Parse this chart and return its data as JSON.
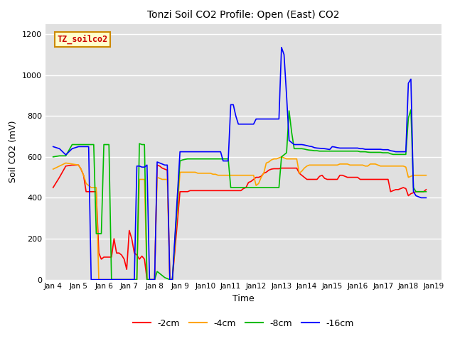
{
  "title": "Tonzi Soil CO2 Profile: Open (East) CO2",
  "xlabel": "Time",
  "ylabel": "Soil CO2 (mV)",
  "ylim": [
    0,
    1250
  ],
  "yticks": [
    0,
    200,
    400,
    600,
    800,
    1000,
    1200
  ],
  "background_color": "#e0e0e0",
  "fig_bg": "#ffffff",
  "legend_label": "TZ_soilco2",
  "series": {
    "2cm": {
      "color": "#ff0000",
      "label": "-2cm",
      "x": [
        0,
        0.25,
        0.5,
        0.75,
        1.0,
        1.1,
        1.2,
        1.3,
        1.4,
        1.5,
        1.6,
        1.7,
        1.8,
        1.9,
        2.0,
        2.1,
        2.2,
        2.3,
        2.4,
        2.5,
        2.6,
        2.7,
        2.8,
        2.9,
        3.0,
        3.1,
        3.2,
        3.3,
        3.4,
        3.5,
        3.6,
        3.7,
        3.8,
        3.9,
        4.0,
        4.1,
        4.2,
        4.3,
        4.4,
        4.5,
        4.6,
        4.7,
        5.0,
        5.1,
        5.2,
        5.3,
        5.4,
        5.5,
        5.6,
        5.7,
        5.8,
        5.9,
        6.0,
        6.1,
        6.2,
        6.3,
        6.4,
        6.5,
        6.6,
        6.7,
        6.8,
        6.9,
        7.0,
        7.1,
        7.2,
        7.3,
        7.4,
        7.5,
        7.6,
        7.7,
        7.8,
        7.9,
        8.0,
        8.1,
        8.2,
        8.3,
        8.4,
        8.5,
        8.6,
        8.7,
        8.8,
        8.9,
        9.0,
        9.1,
        9.2,
        9.3,
        9.4,
        9.5,
        9.6,
        9.7,
        9.8,
        9.9,
        10.0,
        10.1,
        10.2,
        10.3,
        10.4,
        10.5,
        10.6,
        10.7,
        10.8,
        10.9,
        11.0,
        11.1,
        11.2,
        11.3,
        11.4,
        11.5,
        11.6,
        11.7,
        11.8,
        11.9,
        12.0,
        12.1,
        12.2,
        12.3,
        12.4,
        12.5,
        12.6,
        12.7,
        12.8,
        12.9,
        13.0,
        13.1,
        13.2,
        13.3,
        13.4,
        13.5,
        13.6,
        13.7,
        13.8,
        13.9,
        14.0,
        14.1,
        14.2,
        14.3,
        14.4,
        14.5,
        14.6,
        14.7
      ],
      "y": [
        450,
        500,
        555,
        560,
        560,
        540,
        510,
        430,
        430,
        430,
        430,
        430,
        130,
        100,
        110,
        110,
        110,
        110,
        200,
        130,
        130,
        120,
        100,
        50,
        240,
        200,
        130,
        120,
        100,
        115,
        100,
        0,
        0,
        0,
        0,
        560,
        555,
        545,
        540,
        535,
        0,
        0,
        430,
        430,
        430,
        430,
        435,
        435,
        435,
        435,
        435,
        435,
        435,
        435,
        435,
        435,
        435,
        435,
        435,
        435,
        435,
        435,
        435,
        435,
        435,
        435,
        435,
        445,
        450,
        475,
        480,
        490,
        500,
        500,
        505,
        520,
        525,
        535,
        540,
        542,
        542,
        542,
        545,
        545,
        545,
        545,
        545,
        545,
        545,
        520,
        510,
        500,
        490,
        490,
        490,
        490,
        490,
        505,
        510,
        495,
        490,
        490,
        490,
        490,
        490,
        510,
        510,
        505,
        500,
        500,
        500,
        500,
        500,
        490,
        490,
        490,
        490,
        490,
        490,
        490,
        490,
        490,
        490,
        490,
        490,
        430,
        435,
        440,
        440,
        445,
        450,
        445,
        410,
        420,
        425,
        430,
        430,
        430,
        430,
        440
      ]
    },
    "4cm": {
      "color": "#ffa500",
      "label": "-4cm",
      "x": [
        0,
        0.25,
        0.5,
        0.75,
        1.0,
        1.1,
        1.2,
        1.3,
        1.4,
        1.5,
        1.6,
        1.7,
        1.8,
        1.9,
        2.0,
        2.1,
        2.2,
        2.3,
        2.4,
        2.5,
        2.6,
        2.7,
        2.8,
        2.9,
        3.0,
        3.1,
        3.2,
        3.3,
        3.4,
        3.5,
        3.6,
        3.7,
        3.8,
        3.9,
        4.0,
        4.1,
        4.2,
        4.3,
        4.4,
        4.5,
        4.6,
        4.7,
        5.0,
        5.1,
        5.2,
        5.3,
        5.4,
        5.5,
        5.6,
        5.7,
        5.8,
        5.9,
        6.0,
        6.1,
        6.2,
        6.3,
        6.4,
        6.5,
        6.6,
        6.7,
        6.8,
        6.9,
        7.0,
        7.1,
        7.2,
        7.3,
        7.4,
        7.5,
        7.6,
        7.7,
        7.8,
        7.9,
        8.0,
        8.1,
        8.2,
        8.3,
        8.4,
        8.5,
        8.6,
        8.7,
        8.8,
        8.9,
        9.0,
        9.1,
        9.2,
        9.3,
        9.4,
        9.5,
        9.6,
        9.7,
        9.8,
        9.9,
        10.0,
        10.1,
        10.2,
        10.3,
        10.4,
        10.5,
        10.6,
        10.7,
        10.8,
        10.9,
        11.0,
        11.1,
        11.2,
        11.3,
        11.4,
        11.5,
        11.6,
        11.7,
        11.8,
        11.9,
        12.0,
        12.1,
        12.2,
        12.3,
        12.4,
        12.5,
        12.6,
        12.7,
        12.8,
        12.9,
        13.0,
        13.1,
        13.2,
        13.3,
        13.4,
        13.5,
        13.6,
        13.7,
        13.8,
        13.9,
        14.0,
        14.1,
        14.2,
        14.3,
        14.4,
        14.5,
        14.6,
        14.7
      ],
      "y": [
        540,
        555,
        570,
        565,
        560,
        540,
        510,
        470,
        460,
        450,
        450,
        450,
        0,
        0,
        0,
        0,
        0,
        0,
        0,
        0,
        0,
        0,
        0,
        0,
        0,
        0,
        0,
        0,
        490,
        490,
        490,
        0,
        0,
        0,
        0,
        500,
        495,
        490,
        490,
        490,
        0,
        0,
        525,
        525,
        525,
        525,
        525,
        525,
        525,
        520,
        520,
        520,
        520,
        520,
        520,
        515,
        515,
        510,
        510,
        510,
        510,
        510,
        510,
        510,
        510,
        510,
        510,
        510,
        510,
        510,
        510,
        510,
        460,
        470,
        500,
        520,
        570,
        575,
        585,
        590,
        590,
        595,
        600,
        595,
        590,
        590,
        590,
        590,
        590,
        520,
        530,
        545,
        555,
        560,
        560,
        560,
        560,
        560,
        560,
        560,
        560,
        560,
        560,
        560,
        560,
        565,
        565,
        565,
        565,
        560,
        560,
        560,
        560,
        560,
        560,
        555,
        555,
        565,
        565,
        565,
        560,
        555,
        555,
        555,
        555,
        555,
        555,
        555,
        555,
        555,
        555,
        550,
        500,
        505,
        510,
        510,
        510,
        510,
        510,
        510
      ]
    },
    "8cm": {
      "color": "#00bb00",
      "label": "-8cm",
      "x": [
        0,
        0.25,
        0.5,
        0.75,
        1.0,
        1.1,
        1.2,
        1.3,
        1.4,
        1.5,
        1.6,
        1.7,
        1.8,
        1.9,
        2.0,
        2.1,
        2.2,
        2.3,
        2.4,
        2.5,
        2.6,
        2.7,
        2.8,
        2.9,
        3.0,
        3.1,
        3.2,
        3.3,
        3.4,
        3.5,
        3.6,
        3.7,
        3.8,
        3.9,
        4.0,
        4.1,
        4.2,
        4.3,
        4.4,
        4.5,
        4.6,
        4.7,
        5.0,
        5.1,
        5.2,
        5.3,
        5.4,
        5.5,
        5.6,
        5.7,
        5.8,
        5.9,
        6.0,
        6.1,
        6.2,
        6.3,
        6.4,
        6.5,
        6.6,
        6.7,
        6.8,
        6.9,
        7.0,
        7.1,
        7.2,
        7.3,
        7.4,
        7.5,
        7.6,
        7.7,
        7.8,
        7.9,
        8.0,
        8.1,
        8.2,
        8.3,
        8.4,
        8.5,
        8.6,
        8.7,
        8.8,
        8.9,
        9.0,
        9.1,
        9.2,
        9.3,
        9.4,
        9.5,
        9.6,
        9.7,
        9.8,
        9.9,
        10.0,
        10.1,
        10.2,
        10.3,
        10.4,
        10.5,
        10.6,
        10.7,
        10.8,
        10.9,
        11.0,
        11.1,
        11.2,
        11.3,
        11.4,
        11.5,
        11.6,
        11.7,
        11.8,
        11.9,
        12.0,
        12.1,
        12.2,
        12.3,
        12.4,
        12.5,
        12.6,
        12.7,
        12.8,
        12.9,
        13.0,
        13.1,
        13.2,
        13.3,
        13.4,
        13.5,
        13.6,
        13.7,
        13.8,
        13.9,
        14.0,
        14.1,
        14.2,
        14.3,
        14.4,
        14.5,
        14.6,
        14.7
      ],
      "y": [
        600,
        605,
        605,
        660,
        660,
        660,
        660,
        660,
        660,
        660,
        660,
        225,
        225,
        225,
        660,
        660,
        660,
        0,
        0,
        0,
        0,
        0,
        0,
        0,
        0,
        0,
        0,
        0,
        665,
        660,
        660,
        0,
        0,
        0,
        0,
        40,
        30,
        20,
        10,
        5,
        0,
        0,
        580,
        585,
        588,
        590,
        590,
        590,
        590,
        590,
        590,
        590,
        590,
        590,
        590,
        590,
        590,
        590,
        590,
        590,
        590,
        590,
        450,
        450,
        450,
        450,
        450,
        450,
        450,
        450,
        450,
        450,
        450,
        450,
        450,
        450,
        450,
        450,
        450,
        450,
        450,
        450,
        600,
        610,
        620,
        825,
        720,
        640,
        640,
        640,
        640,
        638,
        635,
        633,
        632,
        630,
        630,
        628,
        628,
        628,
        628,
        628,
        628,
        628,
        628,
        628,
        628,
        628,
        628,
        628,
        628,
        628,
        628,
        625,
        625,
        625,
        623,
        622,
        622,
        622,
        622,
        622,
        620,
        620,
        620,
        615,
        612,
        612,
        612,
        612,
        612,
        612,
        790,
        830,
        450,
        430,
        430,
        430,
        430,
        430
      ]
    },
    "16cm": {
      "color": "#0000ff",
      "label": "-16cm",
      "x": [
        0,
        0.25,
        0.5,
        0.75,
        1.0,
        1.1,
        1.2,
        1.3,
        1.4,
        1.5,
        1.6,
        1.7,
        1.8,
        1.9,
        2.0,
        2.1,
        2.2,
        2.3,
        2.4,
        2.5,
        2.6,
        2.7,
        2.8,
        2.9,
        3.0,
        3.1,
        3.2,
        3.3,
        3.4,
        3.5,
        3.6,
        3.7,
        3.8,
        3.9,
        4.0,
        4.1,
        4.2,
        4.3,
        4.4,
        4.5,
        4.6,
        4.7,
        5.0,
        5.1,
        5.2,
        5.3,
        5.4,
        5.5,
        5.6,
        5.7,
        5.8,
        5.9,
        6.0,
        6.1,
        6.2,
        6.3,
        6.4,
        6.5,
        6.6,
        6.7,
        6.8,
        6.9,
        7.0,
        7.1,
        7.2,
        7.3,
        7.4,
        7.5,
        7.6,
        7.7,
        7.8,
        7.9,
        8.0,
        8.1,
        8.2,
        8.3,
        8.4,
        8.5,
        8.6,
        8.7,
        8.8,
        8.9,
        9.0,
        9.1,
        9.2,
        9.3,
        9.4,
        9.5,
        9.6,
        9.7,
        9.8,
        9.9,
        10.0,
        10.1,
        10.2,
        10.3,
        10.4,
        10.5,
        10.6,
        10.7,
        10.8,
        10.9,
        11.0,
        11.1,
        11.2,
        11.3,
        11.4,
        11.5,
        11.6,
        11.7,
        11.8,
        11.9,
        12.0,
        12.1,
        12.2,
        12.3,
        12.4,
        12.5,
        12.6,
        12.7,
        12.8,
        12.9,
        13.0,
        13.1,
        13.2,
        13.3,
        13.4,
        13.5,
        13.6,
        13.7,
        13.8,
        13.9,
        14.0,
        14.1,
        14.2,
        14.3,
        14.4,
        14.5,
        14.6,
        14.7
      ],
      "y": [
        650,
        640,
        610,
        640,
        650,
        650,
        650,
        650,
        650,
        0,
        0,
        0,
        0,
        0,
        0,
        0,
        0,
        0,
        0,
        0,
        0,
        0,
        0,
        0,
        0,
        0,
        0,
        555,
        555,
        550,
        550,
        560,
        0,
        0,
        0,
        575,
        570,
        565,
        560,
        560,
        0,
        0,
        625,
        625,
        625,
        625,
        625,
        625,
        625,
        625,
        625,
        625,
        625,
        625,
        625,
        625,
        625,
        625,
        625,
        580,
        580,
        580,
        855,
        855,
        800,
        760,
        760,
        760,
        760,
        760,
        760,
        760,
        785,
        785,
        785,
        785,
        785,
        785,
        785,
        785,
        785,
        785,
        1135,
        1100,
        900,
        680,
        670,
        660,
        660,
        660,
        660,
        658,
        655,
        652,
        650,
        645,
        643,
        642,
        641,
        640,
        638,
        636,
        650,
        648,
        645,
        643,
        643,
        643,
        643,
        643,
        643,
        643,
        643,
        640,
        640,
        637,
        637,
        637,
        637,
        637,
        637,
        637,
        635,
        635,
        635,
        630,
        628,
        625,
        625,
        625,
        625,
        625,
        960,
        980,
        430,
        410,
        405,
        400,
        400,
        400
      ]
    }
  },
  "xtick_labels": [
    "Jan 4",
    "Jan 5",
    "Jan 6",
    "Jan 7",
    "Jan 8",
    "Jan 9",
    "Jan 10",
    "Jan 11",
    "Jan 12",
    "Jan 13",
    "Jan 14",
    "Jan 15",
    "Jan 16",
    "Jan 17",
    "Jan 18",
    "Jan 19"
  ],
  "xtick_positions": [
    0,
    1,
    2,
    3,
    4,
    5,
    6,
    7,
    8,
    9,
    10,
    11,
    12,
    13,
    14,
    15
  ]
}
